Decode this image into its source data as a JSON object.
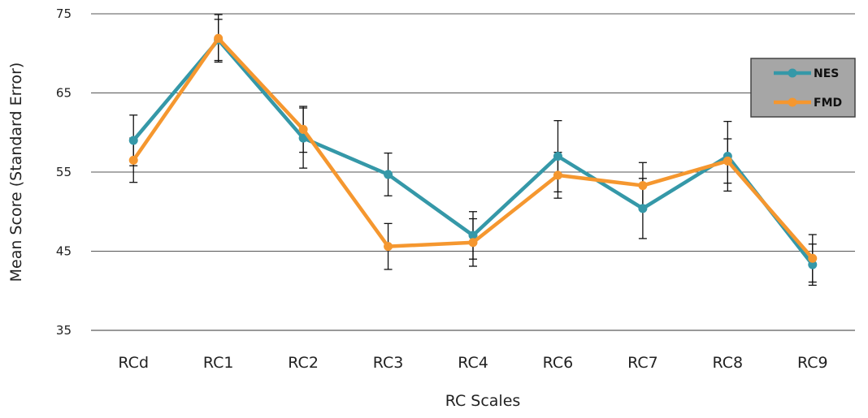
{
  "chart_data": {
    "type": "line",
    "categories": [
      "RCd",
      "RC1",
      "RC2",
      "RC3",
      "RC4",
      "RC6",
      "RC7",
      "RC8",
      "RC9"
    ],
    "series": [
      {
        "name": "NES",
        "color": "#3598a8",
        "values": [
          59.0,
          71.7,
          59.3,
          54.7,
          47.0,
          57.0,
          50.4,
          57.0,
          43.3
        ],
        "error": [
          3.2,
          2.6,
          3.8,
          2.7,
          3.0,
          4.5,
          3.8,
          4.4,
          2.6
        ]
      },
      {
        "name": "FMD",
        "color": "#f5972f",
        "values": [
          56.5,
          71.9,
          60.4,
          45.6,
          46.1,
          54.6,
          53.3,
          56.4,
          44.1
        ],
        "error": [
          2.8,
          3.0,
          2.9,
          2.9,
          3.0,
          2.9,
          2.9,
          2.8,
          3.0
        ]
      }
    ],
    "xlabel": "RC Scales",
    "ylabel": "Mean Score (Standard Error)",
    "ylim": [
      35,
      75
    ],
    "yticks": [
      35,
      45,
      55,
      65,
      75
    ],
    "grid": true,
    "legend_position": "right"
  }
}
